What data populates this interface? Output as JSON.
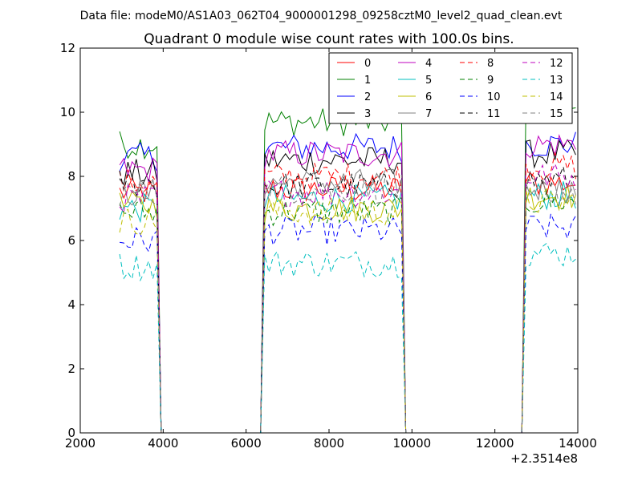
{
  "figure": {
    "suptitle": "Data file: modeM0/AS1A03_062T04_9000001298_09258cztM0_level2_quad_clean.evt"
  },
  "chart_data": {
    "type": "line",
    "title": "Quadrant 0 module wise count rates with 100.0s bins.",
    "xlabel": "",
    "ylabel": "",
    "x_offset_label": "+2.3514e8",
    "xlim": [
      2000,
      14000
    ],
    "ylim": [
      0,
      12
    ],
    "xticks": [
      2000,
      4000,
      6000,
      8000,
      10000,
      12000,
      14000
    ],
    "yticks": [
      0,
      2,
      4,
      6,
      8,
      10,
      12
    ],
    "xtick_labels": [
      "2000",
      "4000",
      "6000",
      "8000",
      "10000",
      "12000",
      "14000"
    ],
    "ytick_labels": [
      "0",
      "2",
      "4",
      "6",
      "8",
      "10",
      "12"
    ],
    "grid": false,
    "legend": {
      "placement": "top-right",
      "columns": 4
    },
    "bin_width_s": 100,
    "on_segments": [
      [
        2950,
        3850
      ],
      [
        6450,
        9750
      ],
      [
        12750,
        14000
      ]
    ],
    "series": [
      {
        "name": "0",
        "color": "#ff0000",
        "dash": "solid",
        "level_segments": [
          7.5,
          7.6,
          7.8
        ]
      },
      {
        "name": "1",
        "color": "#008000",
        "dash": "solid",
        "level_segments": [
          9.0,
          9.7,
          10.2
        ]
      },
      {
        "name": "2",
        "color": "#0000ff",
        "dash": "solid",
        "level_segments": [
          8.6,
          8.9,
          9.0
        ]
      },
      {
        "name": "3",
        "color": "#000000",
        "dash": "solid",
        "level_segments": [
          8.1,
          8.5,
          8.7
        ]
      },
      {
        "name": "4",
        "color": "#bf00bf",
        "dash": "solid",
        "level_segments": [
          8.2,
          8.7,
          9.0
        ]
      },
      {
        "name": "5",
        "color": "#00bfbf",
        "dash": "solid",
        "level_segments": [
          7.0,
          7.3,
          7.4
        ]
      },
      {
        "name": "6",
        "color": "#bfbf00",
        "dash": "solid",
        "level_segments": [
          7.1,
          7.0,
          7.4
        ]
      },
      {
        "name": "7",
        "color": "#808080",
        "dash": "solid",
        "level_segments": [
          7.5,
          7.8,
          7.6
        ]
      },
      {
        "name": "8",
        "color": "#ff0000",
        "dash": "dashed",
        "level_segments": [
          7.8,
          8.0,
          8.3
        ]
      },
      {
        "name": "9",
        "color": "#008000",
        "dash": "dashed",
        "level_segments": [
          6.9,
          6.9,
          7.2
        ]
      },
      {
        "name": "10",
        "color": "#0000ff",
        "dash": "dashed",
        "level_segments": [
          6.0,
          6.3,
          6.4
        ]
      },
      {
        "name": "11",
        "color": "#000000",
        "dash": "dashed",
        "level_segments": [
          7.8,
          7.7,
          7.9
        ]
      },
      {
        "name": "12",
        "color": "#bf00bf",
        "dash": "dashed",
        "level_segments": [
          7.3,
          7.5,
          8.0
        ]
      },
      {
        "name": "13",
        "color": "#00bfbf",
        "dash": "dashed",
        "level_segments": [
          5.2,
          5.3,
          5.6
        ]
      },
      {
        "name": "14",
        "color": "#bfbf00",
        "dash": "dashed",
        "level_segments": [
          6.6,
          6.9,
          7.2
        ]
      },
      {
        "name": "15",
        "color": "#808080",
        "dash": "dashed",
        "level_segments": [
          7.5,
          7.6,
          7.5
        ]
      }
    ]
  }
}
